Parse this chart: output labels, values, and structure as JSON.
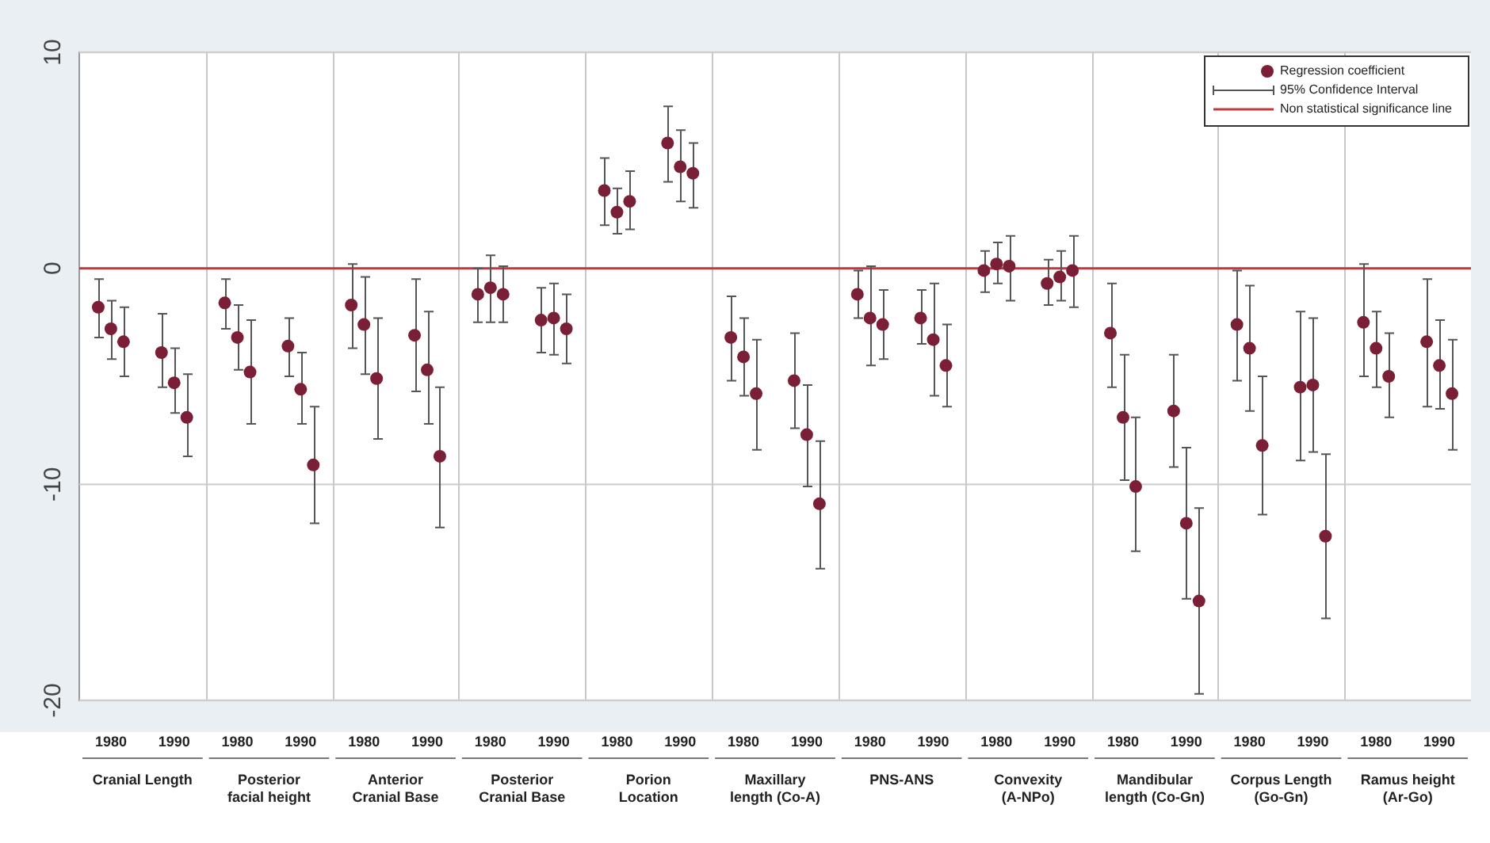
{
  "chart_data": {
    "type": "scatter",
    "categories": [
      "1980",
      "1990",
      "1980",
      "1990",
      "1980",
      "1990",
      "1980",
      "1990",
      "1980",
      "1990",
      "1980",
      "1990",
      "1980",
      "1990",
      "1980",
      "1990",
      "1980",
      "1990",
      "1980",
      "1990",
      "1980",
      "1990"
    ],
    "series": [
      {
        "name": "Regression coefficient",
        "color": "#7a1f35",
        "values": [
          -1.8,
          -3.9,
          -1.6,
          -3.6,
          -1.7,
          -3.1,
          -1.2,
          -2.4,
          3.6,
          5.8,
          -3.2,
          -5.2,
          -1.2,
          -2.3,
          -0.1,
          -0.7,
          -3.0,
          -6.6,
          -2.6,
          -5.5,
          -2.5,
          -3.4
        ],
        "errors": [
          [
            -3.2,
            -0.5
          ],
          [
            -5.5,
            -2.1
          ],
          [
            -2.8,
            -0.5
          ],
          [
            -5.0,
            -2.3
          ],
          [
            -3.7,
            0.2
          ],
          [
            -5.7,
            -0.5
          ],
          [
            -2.5,
            0.0
          ],
          [
            -3.9,
            -0.9
          ],
          [
            2.0,
            5.1
          ],
          [
            4.0,
            7.5
          ],
          [
            -5.2,
            -1.3
          ],
          [
            -7.4,
            -3.0
          ],
          [
            -2.3,
            -0.1
          ],
          [
            -3.5,
            -1.0
          ],
          [
            -1.1,
            0.8
          ],
          [
            -1.7,
            0.4
          ],
          [
            -5.5,
            -0.7
          ],
          [
            -9.2,
            -4.0
          ],
          [
            -5.2,
            -0.1
          ],
          [
            -8.9,
            -2.0
          ],
          [
            -5.0,
            0.2
          ],
          [
            -6.4,
            -0.5
          ]
        ]
      },
      {
        "color": "#7a1f35",
        "values": [
          -2.8,
          -5.3,
          -3.2,
          -5.6,
          -2.6,
          -4.7,
          -0.9,
          -2.3,
          2.6,
          4.7,
          -4.1,
          -7.7,
          -2.3,
          -3.3,
          0.2,
          -0.4,
          -6.9,
          -11.8,
          -3.7,
          -5.4,
          -3.7,
          -4.5
        ],
        "errors": [
          [
            -4.2,
            -1.5
          ],
          [
            -6.7,
            -3.7
          ],
          [
            -4.7,
            -1.7
          ],
          [
            -7.2,
            -3.9
          ],
          [
            -4.9,
            -0.4
          ],
          [
            -7.2,
            -2.0
          ],
          [
            -2.5,
            0.6
          ],
          [
            -4.0,
            -0.7
          ],
          [
            1.6,
            3.7
          ],
          [
            3.1,
            6.4
          ],
          [
            -5.9,
            -2.3
          ],
          [
            -10.1,
            -5.4
          ],
          [
            -4.5,
            0.1
          ],
          [
            -5.9,
            -0.7
          ],
          [
            -0.7,
            1.2
          ],
          [
            -1.5,
            0.8
          ],
          [
            -9.8,
            -4.0
          ],
          [
            -15.3,
            -8.3
          ],
          [
            -6.6,
            -0.8
          ],
          [
            -8.5,
            -2.3
          ],
          [
            -5.5,
            -2.0
          ],
          [
            -6.5,
            -2.4
          ]
        ]
      },
      {
        "color": "#7a1f35",
        "values": [
          -3.4,
          -6.9,
          -4.8,
          -9.1,
          -5.1,
          -8.7,
          -1.2,
          -2.8,
          3.1,
          4.4,
          -5.8,
          -10.9,
          -2.6,
          -4.5,
          0.1,
          -0.1,
          -10.1,
          -15.4,
          -8.2,
          -12.4,
          -5.0,
          -5.8
        ],
        "errors": [
          [
            -5.0,
            -1.8
          ],
          [
            -8.7,
            -4.9
          ],
          [
            -7.2,
            -2.4
          ],
          [
            -11.8,
            -6.4
          ],
          [
            -7.9,
            -2.3
          ],
          [
            -12.0,
            -5.5
          ],
          [
            -2.5,
            0.1
          ],
          [
            -4.4,
            -1.2
          ],
          [
            1.8,
            4.5
          ],
          [
            2.8,
            5.8
          ],
          [
            -8.4,
            -3.3
          ],
          [
            -13.9,
            -8.0
          ],
          [
            -4.2,
            -1.0
          ],
          [
            -6.4,
            -2.6
          ],
          [
            -1.5,
            1.5
          ],
          [
            -1.8,
            1.5
          ],
          [
            -13.1,
            -6.9
          ],
          [
            -19.7,
            -11.1
          ],
          [
            -11.4,
            -5.0
          ],
          [
            -16.2,
            -8.6
          ],
          [
            -6.9,
            -3.0
          ],
          [
            -8.4,
            -3.3
          ]
        ]
      }
    ],
    "ylim": [
      -20,
      10
    ],
    "yticks": [
      -20,
      -10,
      0,
      10
    ],
    "grid": "y",
    "marker": "circle",
    "legend": "top right",
    "ref_lines": [
      {
        "axis": "y",
        "value": 0,
        "label": "Non statistical significance line",
        "color": "#c0393f"
      }
    ],
    "annotations": [
      "Cranial Length",
      "Posterior facial height",
      "Anterior Cranial Base",
      "Posterior Cranial Base",
      "Porion Location",
      "Maxillary length (Co-A)",
      "PNS-ANS",
      "Convexity (A-NPo)",
      "Mandibular length (Co-Gn)",
      "Corpus Length (Go-Gn)",
      "Ramus height (Ar-Go)",
      "95% Confidence Interval"
    ]
  }
}
